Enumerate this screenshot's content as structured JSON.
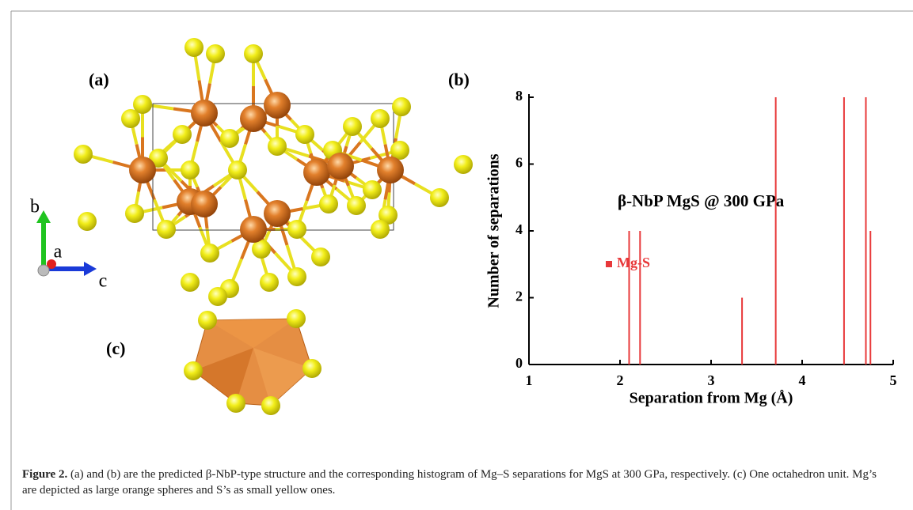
{
  "panels": {
    "a": {
      "label": "(a)",
      "axes": [
        "b",
        "a",
        "c"
      ]
    },
    "b": {
      "label": "(b)"
    },
    "c": {
      "label": "(c)"
    }
  },
  "chart_data": {
    "type": "bar",
    "x": [
      2.1,
      2.22,
      3.34,
      3.71,
      4.46,
      4.7,
      4.75
    ],
    "series": [
      {
        "name": "Mg-S",
        "color": "#e8383a",
        "values": [
          4,
          4,
          2,
          8,
          8,
          8,
          4
        ]
      }
    ],
    "xlim": [
      1,
      5
    ],
    "xticks": [
      1,
      2,
      3,
      4,
      5
    ],
    "ylim": [
      0,
      8
    ],
    "yticks": [
      0,
      2,
      4,
      6,
      8
    ],
    "xlabel": "Separation from Mg (Å)",
    "ylabel": "Number of separations",
    "annotation": "β-NbP MgS @ 300 GPa",
    "legend": "center-left"
  },
  "caption": {
    "label": "Figure 2.",
    "text": "(a) and (b) are the predicted β-NbP-type structure and the corresponding histogram of Mg–S separations for MgS at 300 GPa, respectively. (c) One octahedron unit. Mg’s are depicted as large orange spheres and S’s as small yellow ones."
  }
}
